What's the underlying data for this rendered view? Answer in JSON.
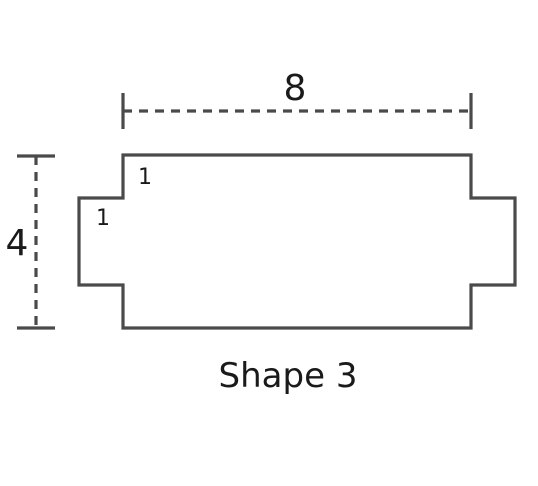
{
  "diagram": {
    "caption": "Shape 3",
    "width_dimension": "8",
    "height_dimension": "4",
    "notch_width_label": "1",
    "notch_height_label": "1",
    "stroke_color": "#4a4a4a",
    "text_color": "#1a1a1a"
  }
}
